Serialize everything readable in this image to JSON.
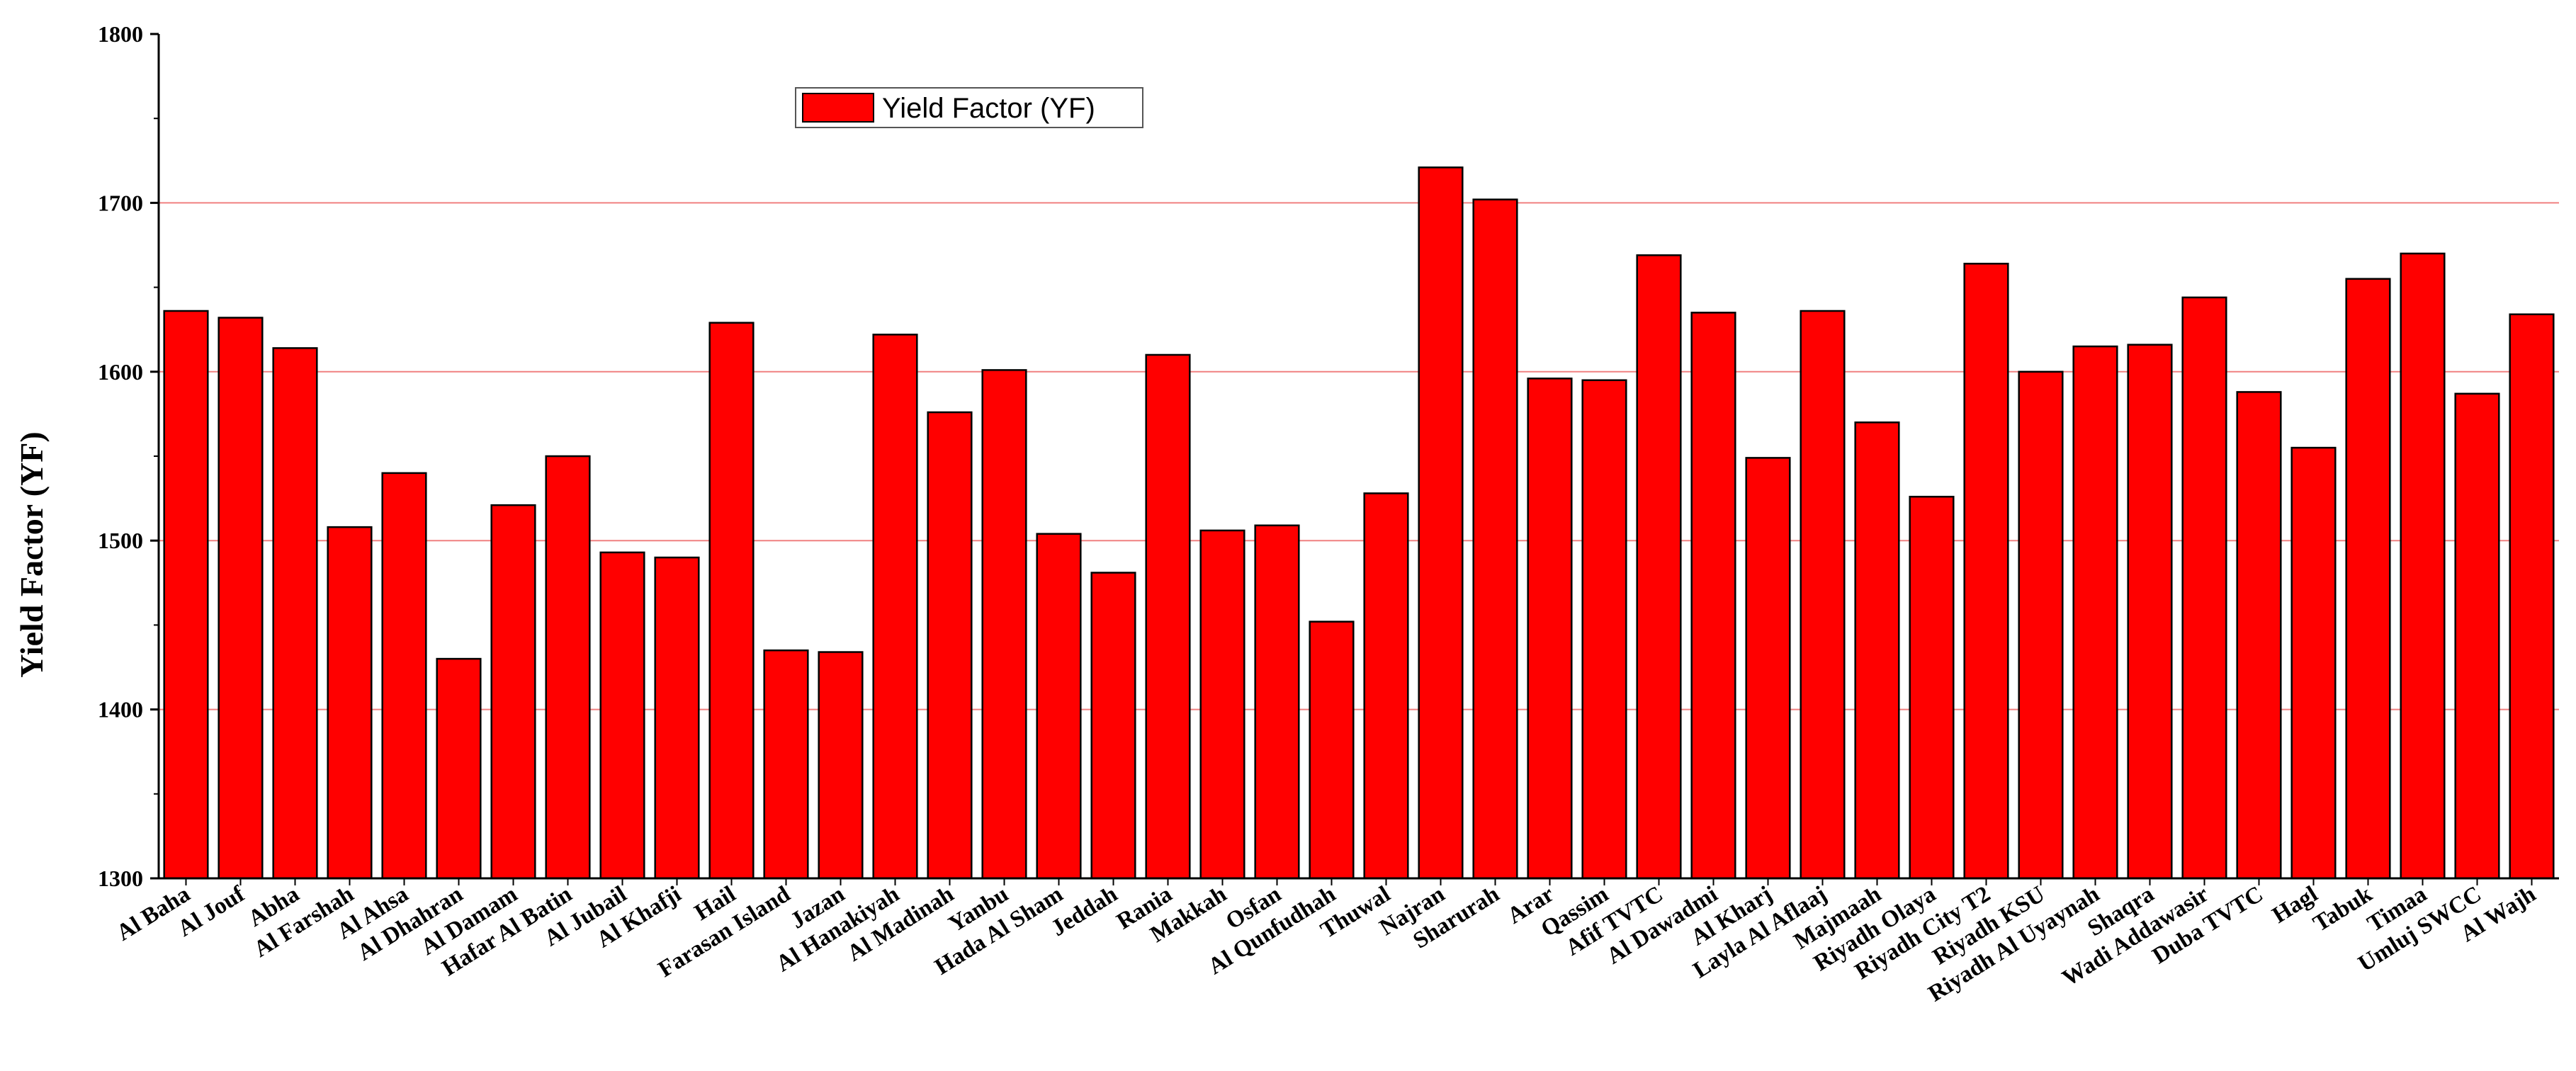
{
  "chart_data": {
    "type": "bar",
    "title": "",
    "xlabel": "",
    "ylabel": "Yield Factor (YF)",
    "ylim": [
      1300,
      1800
    ],
    "yticks": [
      "1300",
      "1400",
      "1500",
      "1600",
      "1700",
      "1800"
    ],
    "grid": "horizontal",
    "legend_position": "top-center",
    "colors": {
      "bar": "#ff0000",
      "grid": "#f08080",
      "axis": "#000000"
    },
    "series": [
      {
        "name": "Yield Factor (YF)",
        "values": [
          1636,
          1632,
          1614,
          1508,
          1540,
          1430,
          1521,
          1550,
          1493,
          1490,
          1629,
          1435,
          1434,
          1622,
          1576,
          1601,
          1504,
          1481,
          1610,
          1506,
          1509,
          1452,
          1528,
          1721,
          1702,
          1596,
          1595,
          1669,
          1635,
          1549,
          1636,
          1570,
          1526,
          1664,
          1600,
          1615,
          1616,
          1644,
          1588,
          1555,
          1655,
          1670,
          1587,
          1634
        ]
      }
    ],
    "categories": [
      "Al Baha",
      "Al Jouf",
      "Abha",
      "Al Farshah",
      "Al Ahsa",
      "Al Dhahran",
      "Al Damam",
      "Hafar Al Batin",
      "Al Jubail",
      "Al Khafji",
      "Hail",
      "Farasan Island",
      "Jazan",
      "Al Hanakiyah",
      "Al Madinah",
      "Yanbu",
      "Hada Al Sham",
      "Jeddah",
      "Rania",
      "Makkah",
      "Osfan",
      "Al Qunfudhah",
      "Thuwal",
      "Najran",
      "Sharurah",
      "Arar",
      "Qassim",
      "Afif TVTC",
      "Al Dawadmi",
      "Al Kharj",
      "Layla Al Aflaaj",
      "Majmaah",
      "Riyadh Olaya",
      "Riyadh City T2",
      "Riyadh KSU",
      "Riyadh Al Uyaynah",
      "Shaqra",
      "Wadi Addawasir",
      "Duba TVTC",
      "Hagl",
      "Tabuk",
      "Timaa",
      "Umluj SWCC",
      "Al Wajh"
    ]
  }
}
